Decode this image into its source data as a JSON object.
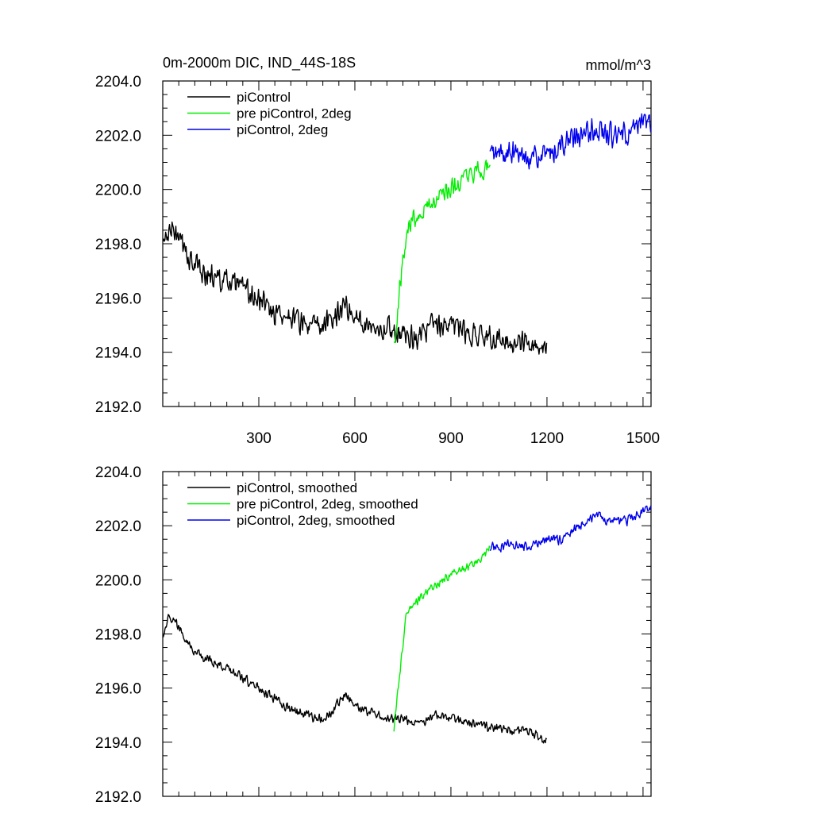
{
  "chart_data": [
    {
      "type": "line",
      "title_left": "0m-2000m DIC, IND_44S-18S",
      "title_right": "mmol/m^3",
      "xlim": [
        0,
        1525
      ],
      "ylim": [
        2192.0,
        2204.0
      ],
      "x_ticks": [
        300,
        600,
        900,
        1200,
        1500
      ],
      "x_tick_labels": [
        "300",
        "600",
        "900",
        "1200",
        "1500"
      ],
      "y_ticks": [
        2192.0,
        2194.0,
        2196.0,
        2198.0,
        2200.0,
        2202.0,
        2204.0
      ],
      "y_tick_labels": [
        "2192.0",
        "2194.0",
        "2196.0",
        "2198.0",
        "2200.0",
        "2202.0",
        "2204.0"
      ],
      "legend_position": "top-left",
      "series": [
        {
          "name": "piControl",
          "color": "#000000",
          "x_range": [
            1,
            1200
          ],
          "noise": 0.45,
          "values": [
            [
              1,
              2198.0
            ],
            [
              30,
              2198.6
            ],
            [
              60,
              2197.9
            ],
            [
              100,
              2197.2
            ],
            [
              150,
              2196.8
            ],
            [
              200,
              2196.6
            ],
            [
              250,
              2196.3
            ],
            [
              300,
              2195.9
            ],
            [
              350,
              2195.5
            ],
            [
              400,
              2195.3
            ],
            [
              450,
              2195.0
            ],
            [
              500,
              2194.9
            ],
            [
              540,
              2195.4
            ],
            [
              570,
              2195.8
            ],
            [
              600,
              2195.3
            ],
            [
              650,
              2195.0
            ],
            [
              700,
              2194.9
            ],
            [
              750,
              2194.7
            ],
            [
              800,
              2194.6
            ],
            [
              850,
              2195.0
            ],
            [
              900,
              2195.0
            ],
            [
              950,
              2194.7
            ],
            [
              1000,
              2194.6
            ],
            [
              1050,
              2194.5
            ],
            [
              1100,
              2194.4
            ],
            [
              1150,
              2194.3
            ],
            [
              1200,
              2194.1
            ]
          ]
        },
        {
          "name": "pre piControl, 2deg",
          "color": "#00ee00",
          "x_range": [
            722,
            1022
          ],
          "noise": 0.4,
          "values": [
            [
              722,
              2194.3
            ],
            [
              735,
              2195.7
            ],
            [
              750,
              2197.4
            ],
            [
              770,
              2198.8
            ],
            [
              800,
              2199.2
            ],
            [
              850,
              2199.6
            ],
            [
              900,
              2200.0
            ],
            [
              950,
              2200.4
            ],
            [
              1000,
              2200.7
            ],
            [
              1022,
              2201.0
            ]
          ]
        },
        {
          "name": "piControl, 2deg",
          "color": "#0000ee",
          "x_range": [
            1022,
            1525
          ],
          "noise": 0.45,
          "values": [
            [
              1022,
              2201.3
            ],
            [
              1100,
              2201.3
            ],
            [
              1150,
              2201.2
            ],
            [
              1200,
              2201.2
            ],
            [
              1250,
              2201.7
            ],
            [
              1300,
              2201.9
            ],
            [
              1350,
              2202.2
            ],
            [
              1400,
              2202.0
            ],
            [
              1450,
              2202.0
            ],
            [
              1525,
              2202.6
            ]
          ]
        }
      ]
    },
    {
      "type": "line",
      "title_left": "",
      "title_right": "",
      "xlim": [
        0,
        1525
      ],
      "ylim": [
        2192.0,
        2204.0
      ],
      "x_ticks": [
        300,
        600,
        900,
        1200,
        1500
      ],
      "x_tick_labels": [],
      "y_ticks": [
        2192.0,
        2194.0,
        2196.0,
        2198.0,
        2200.0,
        2202.0,
        2204.0
      ],
      "y_tick_labels": [
        "2192.0",
        "2194.0",
        "2196.0",
        "2198.0",
        "2200.0",
        "2202.0",
        "2204.0"
      ],
      "legend_position": "top-left",
      "series": [
        {
          "name": "piControl, smoothed",
          "color": "#000000",
          "x_range": [
            1,
            1200
          ],
          "noise": 0.18,
          "values": [
            [
              1,
              2198.0
            ],
            [
              20,
              2198.7
            ],
            [
              60,
              2198.1
            ],
            [
              100,
              2197.3
            ],
            [
              150,
              2197.0
            ],
            [
              200,
              2196.7
            ],
            [
              250,
              2196.4
            ],
            [
              300,
              2196.0
            ],
            [
              350,
              2195.6
            ],
            [
              400,
              2195.2
            ],
            [
              450,
              2195.0
            ],
            [
              500,
              2194.8
            ],
            [
              540,
              2195.3
            ],
            [
              570,
              2195.8
            ],
            [
              600,
              2195.3
            ],
            [
              650,
              2195.1
            ],
            [
              700,
              2194.9
            ],
            [
              750,
              2194.8
            ],
            [
              800,
              2194.7
            ],
            [
              850,
              2195.0
            ],
            [
              900,
              2194.9
            ],
            [
              950,
              2194.7
            ],
            [
              1000,
              2194.6
            ],
            [
              1050,
              2194.5
            ],
            [
              1100,
              2194.4
            ],
            [
              1150,
              2194.4
            ],
            [
              1190,
              2194.1
            ],
            [
              1200,
              2194.1
            ]
          ]
        },
        {
          "name": "pre piControl, 2deg, smoothed",
          "color": "#00ee00",
          "x_range": [
            722,
            1022
          ],
          "noise": 0.15,
          "values": [
            [
              722,
              2194.5
            ],
            [
              740,
              2196.5
            ],
            [
              760,
              2198.7
            ],
            [
              800,
              2199.3
            ],
            [
              850,
              2199.8
            ],
            [
              900,
              2200.2
            ],
            [
              950,
              2200.5
            ],
            [
              1000,
              2200.8
            ],
            [
              1022,
              2201.2
            ]
          ]
        },
        {
          "name": "piControl, 2deg, smoothed",
          "color": "#0000ee",
          "x_range": [
            1022,
            1525
          ],
          "noise": 0.18,
          "values": [
            [
              1022,
              2201.2
            ],
            [
              1100,
              2201.3
            ],
            [
              1150,
              2201.2
            ],
            [
              1200,
              2201.5
            ],
            [
              1250,
              2201.5
            ],
            [
              1300,
              2202.0
            ],
            [
              1350,
              2202.4
            ],
            [
              1400,
              2202.1
            ],
            [
              1450,
              2202.2
            ],
            [
              1525,
              2202.7
            ]
          ]
        }
      ]
    }
  ]
}
